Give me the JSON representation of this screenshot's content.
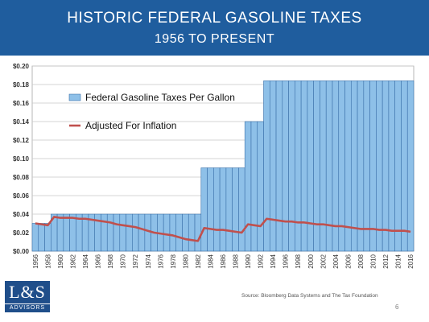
{
  "header": {
    "title": "HISTORIC FEDERAL GASOLINE TAXES",
    "subtitle": "1956 TO PRESENT"
  },
  "colors": {
    "banner": "#1f5d9e",
    "bar_fill": "#8ec0e8",
    "bar_stroke": "#3a6fa8",
    "line": "#c0504d",
    "grid": "#c8c8c8"
  },
  "chart_data": {
    "type": "bar",
    "title": "HISTORIC FEDERAL GASOLINE TAXES",
    "subtitle": "1956 TO PRESENT",
    "xlabel": "",
    "ylabel": "",
    "ylim": [
      0,
      0.2
    ],
    "yticks": [
      "$0.00",
      "$0.02",
      "$0.04",
      "$0.06",
      "$0.08",
      "$0.10",
      "$0.12",
      "$0.14",
      "$0.16",
      "$0.18",
      "$0.20"
    ],
    "xtick_labels": [
      "1956",
      "1958",
      "1960",
      "1962",
      "1964",
      "1966",
      "1968",
      "1970",
      "1972",
      "1974",
      "1976",
      "1978",
      "1980",
      "1982",
      "1984",
      "1986",
      "1988",
      "1990",
      "1992",
      "1994",
      "1996",
      "1998",
      "2000",
      "2002",
      "2004",
      "2006",
      "2008",
      "2010",
      "2012",
      "2014",
      "2016"
    ],
    "grid": true,
    "legend_position": "upper-left, inside plot",
    "x": [
      1956,
      1957,
      1958,
      1959,
      1960,
      1961,
      1962,
      1963,
      1964,
      1965,
      1966,
      1967,
      1968,
      1969,
      1970,
      1971,
      1972,
      1973,
      1974,
      1975,
      1976,
      1977,
      1978,
      1979,
      1980,
      1981,
      1982,
      1983,
      1984,
      1985,
      1986,
      1987,
      1988,
      1989,
      1990,
      1991,
      1992,
      1993,
      1994,
      1995,
      1996,
      1997,
      1998,
      1999,
      2000,
      2001,
      2002,
      2003,
      2004,
      2005,
      2006,
      2007,
      2008,
      2009,
      2010,
      2011,
      2012,
      2013,
      2014,
      2015,
      2016
    ],
    "series": [
      {
        "name": "Federal Gasoline Taxes Per Gallon",
        "type": "bar",
        "values": [
          0.03,
          0.03,
          0.03,
          0.04,
          0.04,
          0.04,
          0.04,
          0.04,
          0.04,
          0.04,
          0.04,
          0.04,
          0.04,
          0.04,
          0.04,
          0.04,
          0.04,
          0.04,
          0.04,
          0.04,
          0.04,
          0.04,
          0.04,
          0.04,
          0.04,
          0.04,
          0.04,
          0.09,
          0.09,
          0.09,
          0.09,
          0.09,
          0.09,
          0.09,
          0.14,
          0.14,
          0.14,
          0.184,
          0.184,
          0.184,
          0.184,
          0.184,
          0.184,
          0.184,
          0.184,
          0.184,
          0.184,
          0.184,
          0.184,
          0.184,
          0.184,
          0.184,
          0.184,
          0.184,
          0.184,
          0.184,
          0.184,
          0.184,
          0.184,
          0.184,
          0.184
        ]
      },
      {
        "name": "Adjusted For Inflation",
        "type": "line",
        "values": [
          0.03,
          0.029,
          0.028,
          0.037,
          0.036,
          0.036,
          0.036,
          0.035,
          0.035,
          0.034,
          0.033,
          0.032,
          0.031,
          0.029,
          0.028,
          0.027,
          0.026,
          0.024,
          0.022,
          0.02,
          0.019,
          0.018,
          0.017,
          0.015,
          0.013,
          0.012,
          0.011,
          0.025,
          0.024,
          0.023,
          0.023,
          0.022,
          0.021,
          0.02,
          0.029,
          0.028,
          0.027,
          0.035,
          0.034,
          0.033,
          0.032,
          0.032,
          0.031,
          0.031,
          0.03,
          0.029,
          0.029,
          0.028,
          0.027,
          0.027,
          0.026,
          0.025,
          0.024,
          0.024,
          0.024,
          0.023,
          0.023,
          0.022,
          0.022,
          0.022,
          0.021
        ]
      }
    ]
  },
  "footer": {
    "source": "Source:  Bloomberg Data Systems and The Tax Foundation",
    "page_number": "6"
  },
  "logo": {
    "main": "L&S",
    "sub": "ADVISORS"
  }
}
